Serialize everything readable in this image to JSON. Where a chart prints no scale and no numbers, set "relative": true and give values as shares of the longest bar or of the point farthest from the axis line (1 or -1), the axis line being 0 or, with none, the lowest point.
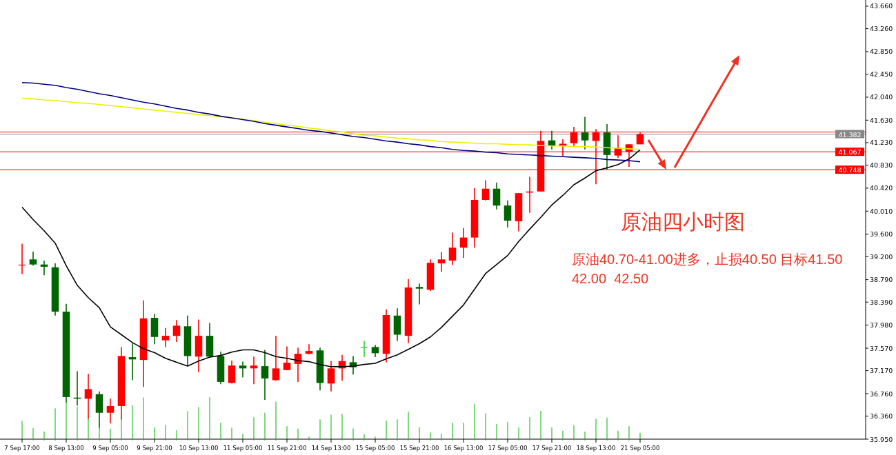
{
  "chart_data": [
    {
      "type": "candlestick",
      "title": "原油四小时图",
      "annotations": [
        "原油40.70-41.00进多，止损40.50 目标41.50 42.00  42.50"
      ],
      "categories": [
        "7 Sep 17:00",
        null,
        null,
        null,
        "8 Sep 13:00",
        null,
        null,
        null,
        "9 Sep 05:00",
        null,
        null,
        null,
        "9 Sep 21:00",
        null,
        null,
        null,
        "10 Sep 13:00",
        null,
        null,
        null,
        "11 Sep 05:00",
        null,
        null,
        null,
        "11 Sep 21:00",
        null,
        null,
        null,
        "14 Sep 13:00",
        null,
        null,
        null,
        "15 Sep 05:00",
        null,
        null,
        null,
        "15 Sep 21:00",
        null,
        null,
        null,
        "16 Sep 13:00",
        null,
        null,
        null,
        "17 Sep 05:00",
        null,
        null,
        null,
        "17 Sep 21:00",
        null,
        null,
        null,
        "18 Sep 13:00",
        null,
        null,
        null,
        "21 Sep 05:00"
      ],
      "ohlc": [
        [
          39.04,
          39.43,
          38.89,
          39.05
        ],
        [
          39.15,
          39.29,
          39.04,
          39.06
        ],
        [
          39.06,
          39.13,
          38.87,
          39.02
        ],
        [
          39.01,
          39.08,
          38.15,
          38.22
        ],
        [
          38.22,
          38.36,
          36.6,
          36.7
        ],
        [
          36.69,
          37.16,
          36.55,
          36.67
        ],
        [
          36.67,
          37.11,
          36.31,
          36.84
        ],
        [
          36.75,
          36.8,
          36.15,
          36.42
        ],
        [
          36.42,
          36.67,
          36.23,
          36.54
        ],
        [
          36.54,
          37.59,
          36.3,
          37.43
        ],
        [
          37.41,
          37.66,
          37.0,
          37.37
        ],
        [
          37.36,
          38.42,
          36.88,
          38.1
        ],
        [
          38.11,
          38.18,
          37.64,
          37.77
        ],
        [
          37.71,
          37.93,
          37.59,
          37.79
        ],
        [
          37.79,
          38.07,
          37.68,
          37.97
        ],
        [
          37.96,
          38.15,
          37.25,
          37.43
        ],
        [
          37.42,
          38.08,
          37.14,
          37.79
        ],
        [
          37.79,
          38.02,
          37.4,
          37.42
        ],
        [
          37.43,
          37.51,
          36.93,
          36.97
        ],
        [
          36.95,
          37.35,
          36.94,
          37.26
        ],
        [
          37.26,
          37.33,
          37.05,
          37.21
        ],
        [
          37.21,
          37.42,
          36.93,
          37.26
        ],
        [
          37.25,
          37.54,
          36.65,
          37.03
        ],
        [
          37.0,
          37.79,
          36.99,
          37.21
        ],
        [
          37.18,
          37.6,
          37.18,
          37.31
        ],
        [
          37.29,
          37.58,
          36.97,
          37.47
        ],
        [
          37.47,
          37.64,
          37.46,
          37.52
        ],
        [
          37.53,
          37.58,
          36.82,
          36.95
        ],
        [
          36.94,
          37.34,
          36.8,
          37.21
        ],
        [
          37.21,
          37.45,
          36.99,
          37.34
        ],
        [
          37.32,
          37.43,
          37.1,
          37.23
        ],
        [
          37.58,
          37.7,
          37.41,
          37.58
        ],
        [
          37.59,
          37.63,
          37.41,
          37.48
        ],
        [
          37.47,
          38.26,
          37.32,
          38.16
        ],
        [
          38.15,
          38.28,
          37.7,
          37.81
        ],
        [
          37.79,
          38.8,
          37.66,
          38.65
        ],
        [
          38.66,
          38.72,
          38.35,
          38.63
        ],
        [
          38.61,
          39.15,
          38.59,
          39.09
        ],
        [
          39.08,
          39.28,
          38.93,
          39.15
        ],
        [
          39.13,
          39.63,
          39.05,
          39.36
        ],
        [
          39.36,
          39.71,
          39.18,
          39.54
        ],
        [
          39.54,
          40.42,
          39.36,
          40.21
        ],
        [
          40.21,
          40.56,
          40.2,
          40.41
        ],
        [
          40.41,
          40.52,
          40.04,
          40.11
        ],
        [
          40.11,
          40.2,
          39.72,
          39.84
        ],
        [
          39.83,
          40.33,
          39.65,
          40.33
        ],
        [
          40.34,
          40.62,
          39.98,
          40.36
        ],
        [
          40.36,
          41.44,
          40.36,
          41.26
        ],
        [
          41.27,
          41.44,
          41.11,
          41.18
        ],
        [
          41.17,
          41.29,
          40.99,
          41.21
        ],
        [
          41.22,
          41.51,
          41.15,
          41.41
        ],
        [
          41.41,
          41.69,
          41.11,
          41.27
        ],
        [
          41.26,
          41.47,
          40.49,
          41.41
        ],
        [
          41.41,
          41.56,
          40.75,
          41.01
        ],
        [
          41.0,
          41.36,
          40.96,
          41.14
        ],
        [
          41.07,
          41.2,
          40.8,
          41.2
        ],
        [
          41.2,
          41.41,
          41.2,
          41.38
        ]
      ],
      "colors": [
        "#ff0000",
        "#006400",
        "#006400",
        "#006400",
        "#006400",
        "#006400",
        "#ff0000",
        "#006400",
        "#ff0000",
        "#ff0000",
        "#006400",
        "#ff0000",
        "#006400",
        "#ff0000",
        "#ff0000",
        "#006400",
        "#ff0000",
        "#006400",
        "#006400",
        "#ff0000",
        "#006400",
        "#ff0000",
        "#006400",
        "#ff0000",
        "#ff0000",
        "#ff0000",
        "#ff0000",
        "#006400",
        "#ff0000",
        "#ff0000",
        "#006400",
        "#33cc33",
        "#006400",
        "#ff0000",
        "#006400",
        "#ff0000",
        "#006400",
        "#ff0000",
        "#ff0000",
        "#ff0000",
        "#ff0000",
        "#ff0000",
        "#ff0000",
        "#006400",
        "#006400",
        "#ff0000",
        "#ff0000",
        "#ff0000",
        "#006400",
        "#ff0000",
        "#ff0000",
        "#006400",
        "#ff0000",
        "#006400",
        "#ff0000",
        "#ff0000",
        "#ff0000"
      ],
      "series": [
        {
          "type": "line",
          "color": "#000000",
          "values": [
            40.08,
            39.86,
            39.66,
            39.44,
            39.04,
            38.69,
            38.47,
            38.29,
            37.95,
            37.81,
            37.67,
            37.56,
            37.49,
            37.39,
            37.32,
            37.25,
            37.34,
            37.41,
            37.44,
            37.5,
            37.54,
            37.54,
            37.49,
            37.42,
            37.39,
            37.35,
            37.33,
            37.28,
            37.24,
            37.24,
            37.25,
            37.28,
            37.3,
            37.38,
            37.45,
            37.55,
            37.65,
            37.77,
            37.94,
            38.14,
            38.34,
            38.62,
            38.9,
            39.06,
            39.22,
            39.47,
            39.69,
            39.9,
            40.12,
            40.29,
            40.48,
            40.6,
            40.73,
            40.78,
            40.84,
            40.94,
            41.1
          ]
        },
        {
          "type": "line",
          "color": "#f0f000",
          "values": [
            42.02,
            42.01,
            41.99,
            41.98,
            41.96,
            41.94,
            41.93,
            41.91,
            41.89,
            41.87,
            41.85,
            41.83,
            41.81,
            41.79,
            41.77,
            41.75,
            41.73,
            41.71,
            41.69,
            41.67,
            41.65,
            41.62,
            41.59,
            41.57,
            41.54,
            41.52,
            41.49,
            41.47,
            41.44,
            41.42,
            41.39,
            41.36,
            41.35,
            41.33,
            41.31,
            41.3,
            41.28,
            41.27,
            41.25,
            41.24,
            41.23,
            41.22,
            41.21,
            41.21,
            41.2,
            41.19,
            41.19,
            41.18,
            41.17,
            41.17,
            41.16,
            41.16,
            41.15,
            41.14,
            41.13,
            41.12,
            41.11
          ]
        },
        {
          "type": "line",
          "color": "#000080",
          "values": [
            42.3,
            42.29,
            42.27,
            42.25,
            42.21,
            42.18,
            42.14,
            42.1,
            42.07,
            42.03,
            41.99,
            41.95,
            41.92,
            41.88,
            41.84,
            41.81,
            41.77,
            41.74,
            41.7,
            41.67,
            41.64,
            41.61,
            41.57,
            41.54,
            41.51,
            41.48,
            41.45,
            41.43,
            41.4,
            41.37,
            41.34,
            41.32,
            41.29,
            41.26,
            41.24,
            41.21,
            41.19,
            41.16,
            41.14,
            41.11,
            41.09,
            41.08,
            41.06,
            41.05,
            41.03,
            41.02,
            41.01,
            41.0,
            40.99,
            40.98,
            40.97,
            40.96,
            40.95,
            40.93,
            40.92,
            40.91,
            40.89
          ]
        }
      ],
      "ylim": [
        35.95,
        43.77
      ],
      "yticks": [
        {
          "value": 43.66,
          "label": "43.660"
        },
        {
          "value": 43.26,
          "label": "43.260"
        },
        {
          "value": 42.85,
          "label": "42.850"
        },
        {
          "value": 42.45,
          "label": "42.450"
        },
        {
          "value": 42.04,
          "label": "42.040"
        },
        {
          "value": 41.63,
          "label": "41.630"
        },
        {
          "value": 41.23,
          "label": "41.230"
        },
        {
          "value": 40.83,
          "label": "40.830"
        },
        {
          "value": 40.42,
          "label": "40.420"
        },
        {
          "value": 40.01,
          "label": "40.010"
        },
        {
          "value": 39.6,
          "label": "39.600"
        },
        {
          "value": 39.2,
          "label": "39.200"
        },
        {
          "value": 38.79,
          "label": "38.790"
        },
        {
          "value": 38.39,
          "label": "38.390"
        },
        {
          "value": 37.98,
          "label": "37.980"
        },
        {
          "value": 37.57,
          "label": "37.570"
        },
        {
          "value": 37.17,
          "label": "37.170"
        },
        {
          "value": 36.76,
          "label": "36.760"
        },
        {
          "value": 36.36,
          "label": "36.360"
        },
        {
          "value": 35.95,
          "label": "35.950"
        }
      ],
      "ref_lines": [
        {
          "axis": "y",
          "value": 41.42,
          "label": null,
          "color": "#ff0000"
        },
        {
          "axis": "y",
          "value": 41.382,
          "label": "41.382",
          "color": "#888888"
        },
        {
          "axis": "y",
          "value": 41.067,
          "label": "41.067",
          "color": "#ff0000"
        },
        {
          "axis": "y",
          "value": 40.748,
          "label": "40.748",
          "color": "#ff0000"
        }
      ]
    },
    {
      "type": "bar",
      "relative": true,
      "color": "#00b400",
      "categories": [
        null,
        null,
        null,
        null,
        null,
        null,
        null,
        null,
        null,
        null,
        null,
        null,
        null,
        null,
        null,
        null,
        null,
        null,
        null,
        null,
        null,
        null,
        null,
        null,
        null,
        null,
        null,
        null,
        null,
        null,
        null,
        null,
        null,
        null,
        null,
        null,
        null,
        null,
        null,
        null,
        null,
        null,
        null,
        null,
        null,
        null,
        null,
        null,
        null,
        null,
        null,
        null,
        null,
        null,
        null,
        null,
        null
      ],
      "values": [
        0.43,
        0.26,
        0.18,
        0.73,
        0.88,
        0.77,
        0.51,
        0.27,
        0.25,
        0.5,
        0.8,
        0.99,
        0.28,
        0.34,
        0.21,
        0.66,
        0.76,
        1,
        0.39,
        0.27,
        0.13,
        0.52,
        0.63,
        0.89,
        0.31,
        0.25,
        0.06,
        0.47,
        0.58,
        0.6,
        0.25,
        0.11,
        0.06,
        0.44,
        0.47,
        0.65,
        0.28,
        0.16,
        0.13,
        0.39,
        0.39,
        0.84,
        0.61,
        0.36,
        0.41,
        0.28,
        0.52,
        0.67,
        0.28,
        0.2,
        0.33,
        0.18,
        0.48,
        0.51,
        0.2,
        0.31,
        0.15
      ]
    }
  ]
}
